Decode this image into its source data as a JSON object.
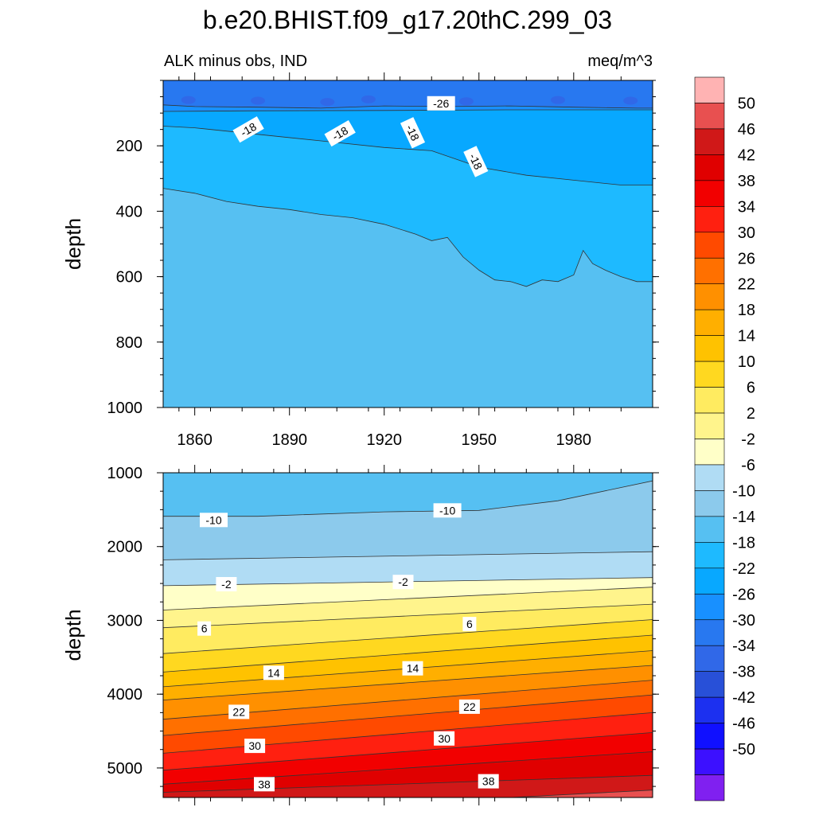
{
  "title": "b.e20.BHIST.f09_g17.20thC.299_03",
  "subtitle_left": "ALK minus obs, IND",
  "subtitle_right": "meq/m^3",
  "colorbar": {
    "labels": [
      "50",
      "46",
      "42",
      "38",
      "34",
      "30",
      "26",
      "22",
      "18",
      "14",
      "10",
      "6",
      "2",
      "-2",
      "-6",
      "-10",
      "-14",
      "-18",
      "-22",
      "-26",
      "-30",
      "-34",
      "-38",
      "-42",
      "-46",
      "-50"
    ],
    "colors": [
      "#ffb3b3",
      "#e85050",
      "#d01818",
      "#e00000",
      "#f20000",
      "#ff2010",
      "#ff4a00",
      "#ff7000",
      "#ff9000",
      "#ffaf00",
      "#ffc200",
      "#ffd820",
      "#ffeb60",
      "#fff48c",
      "#ffffc8",
      "#b0dcf4",
      "#8ccaec",
      "#56c0f2",
      "#1ebaff",
      "#08a8ff",
      "#1890ff",
      "#2878f0",
      "#3068e8",
      "#2850d8",
      "#1c30f0",
      "#1010ff",
      "#3c10ff",
      "#8020f0"
    ]
  },
  "chart_data": [
    {
      "type": "contour",
      "panel": "top",
      "xlabel": "",
      "ylabel": "depth",
      "xlim": [
        1850,
        2005
      ],
      "ylim": [
        1000,
        0
      ],
      "xticks": [
        1860,
        1890,
        1920,
        1950,
        1980
      ],
      "yticks": [
        200,
        400,
        600,
        800,
        1000
      ],
      "fill_regions": [
        {
          "range": "-30 to -26",
          "color": "#2878f0"
        },
        {
          "range": "-26 to -22",
          "color": "#1890ff"
        },
        {
          "range": "-22 to -18",
          "color": "#08a8ff"
        },
        {
          "range": "-18 to -14",
          "color": "#1ebaff"
        },
        {
          "range": "-14 to -10",
          "color": "#56c0f2"
        }
      ],
      "contours": [
        {
          "level": -26,
          "x": [
            1850,
            1860,
            1880,
            1900,
            1920,
            1940,
            1960,
            1980,
            2000,
            2005
          ],
          "y": [
            75,
            80,
            82,
            85,
            78,
            80,
            78,
            82,
            85,
            85
          ]
        },
        {
          "level": -22,
          "x": [
            1850,
            1880,
            1920,
            1960,
            2005
          ],
          "y": [
            95,
            93,
            92,
            90,
            90
          ]
        },
        {
          "level": -18,
          "x": [
            1850,
            1860,
            1880,
            1900,
            1920,
            1935,
            1950,
            1965,
            1980,
            1995,
            2005
          ],
          "y": [
            140,
            145,
            165,
            185,
            205,
            215,
            265,
            290,
            305,
            320,
            320
          ]
        },
        {
          "level": -14,
          "x": [
            1850,
            1860,
            1870,
            1880,
            1890,
            1900,
            1910,
            1920,
            1930,
            1935,
            1940,
            1945,
            1950,
            1955,
            1960,
            1965,
            1970,
            1975,
            1980,
            1983,
            1986,
            1990,
            1995,
            2000,
            2005
          ],
          "y": [
            330,
            345,
            370,
            385,
            395,
            410,
            420,
            440,
            470,
            490,
            480,
            540,
            580,
            610,
            615,
            630,
            610,
            615,
            595,
            520,
            560,
            580,
            600,
            615,
            615
          ]
        }
      ],
      "contour_labels": [
        {
          "text": "-26",
          "x": 1938,
          "y": 70
        },
        {
          "text": "-18",
          "x": 1877,
          "y": 150
        },
        {
          "text": "-18",
          "x": 1906,
          "y": 162
        },
        {
          "text": "-18",
          "x": 1929,
          "y": 160
        },
        {
          "text": "-18",
          "x": 1949,
          "y": 248
        }
      ]
    },
    {
      "type": "contour",
      "panel": "bottom",
      "xlabel": "",
      "ylabel": "depth",
      "xlim": [
        1850,
        2005
      ],
      "ylim": [
        5400,
        1000
      ],
      "yticks": [
        1000,
        2000,
        3000,
        4000,
        5000
      ],
      "contour_levels": [
        -14,
        -10,
        -6,
        -2,
        2,
        6,
        10,
        14,
        18,
        22,
        26,
        30,
        34,
        38,
        42,
        46
      ],
      "contours": [
        {
          "level": -14,
          "x": [
            1850,
            1880,
            1920,
            1950,
            1975,
            2005
          ],
          "y": [
            1590,
            1590,
            1530,
            1510,
            1380,
            1110
          ]
        },
        {
          "level": -10,
          "x": [
            1850,
            2005
          ],
          "y": [
            2180,
            2070
          ]
        },
        {
          "level": -6,
          "x": [
            1850,
            2005
          ],
          "y": [
            2530,
            2420
          ]
        },
        {
          "level": -2,
          "x": [
            1850,
            2005
          ],
          "y": [
            2860,
            2550
          ]
        },
        {
          "level": 2,
          "x": [
            1850,
            2005
          ],
          "y": [
            3100,
            2780
          ]
        },
        {
          "level": 6,
          "x": [
            1850,
            2005
          ],
          "y": [
            3450,
            2990
          ]
        },
        {
          "level": 10,
          "x": [
            1850,
            2005
          ],
          "y": [
            3700,
            3200
          ]
        },
        {
          "level": 14,
          "x": [
            1850,
            2005
          ],
          "y": [
            3900,
            3410
          ]
        },
        {
          "level": 18,
          "x": [
            1850,
            2005
          ],
          "y": [
            4080,
            3610
          ]
        },
        {
          "level": 22,
          "x": [
            1850,
            2005
          ],
          "y": [
            4340,
            3810
          ]
        },
        {
          "level": 26,
          "x": [
            1850,
            2005
          ],
          "y": [
            4560,
            4010
          ]
        },
        {
          "level": 30,
          "x": [
            1850,
            2005
          ],
          "y": [
            4800,
            4250
          ]
        },
        {
          "level": 34,
          "x": [
            1850,
            2005
          ],
          "y": [
            5030,
            4520
          ]
        },
        {
          "level": 38,
          "x": [
            1850,
            2005
          ],
          "y": [
            5220,
            4780
          ]
        },
        {
          "level": 42,
          "x": [
            1850,
            2005
          ],
          "y": [
            5330,
            5100
          ]
        },
        {
          "level": 46,
          "x": [
            1960,
            2005
          ],
          "y": [
            5400,
            5300
          ]
        }
      ],
      "fill_colors": [
        "#56c0f2",
        "#8ccaec",
        "#b0dcf4",
        "#ffffc8",
        "#fff48c",
        "#ffeb60",
        "#ffd820",
        "#ffc200",
        "#ffaf00",
        "#ff9000",
        "#ff7000",
        "#ff4a00",
        "#ff2010",
        "#f20000",
        "#e00000",
        "#d01818",
        "#e85050"
      ],
      "contour_labels": [
        {
          "text": "-10",
          "x": 1866,
          "y": 1640
        },
        {
          "text": "-10",
          "x": 1940,
          "y": 1510
        },
        {
          "text": "-2",
          "x": 1870,
          "y": 2510
        },
        {
          "text": "-2",
          "x": 1926,
          "y": 2480
        },
        {
          "text": "6",
          "x": 1863,
          "y": 3110
        },
        {
          "text": "6",
          "x": 1947,
          "y": 3050
        },
        {
          "text": "14",
          "x": 1885,
          "y": 3710
        },
        {
          "text": "14",
          "x": 1929,
          "y": 3650
        },
        {
          "text": "22",
          "x": 1874,
          "y": 4240
        },
        {
          "text": "22",
          "x": 1947,
          "y": 4170
        },
        {
          "text": "30",
          "x": 1879,
          "y": 4700
        },
        {
          "text": "30",
          "x": 1939,
          "y": 4600
        },
        {
          "text": "38",
          "x": 1882,
          "y": 5220
        },
        {
          "text": "38",
          "x": 1953,
          "y": 5180
        }
      ]
    }
  ]
}
